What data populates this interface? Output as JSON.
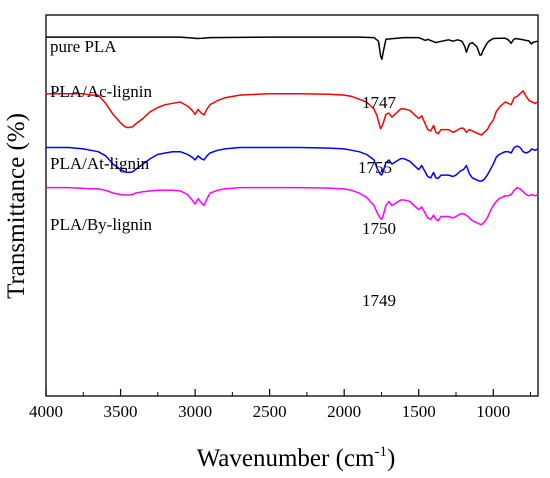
{
  "chart_data": {
    "type": "line",
    "title": "",
    "xlabel": "Wavenumber (cm",
    "xlabel_superscript": "-1",
    "xlabel_suffix": ")",
    "ylabel": "Transmittance (%)",
    "xlim": [
      4000,
      700
    ],
    "x_reversed": true,
    "xticks": [
      4000,
      3500,
      3000,
      2500,
      2000,
      1500,
      1000
    ],
    "xtick_labels": [
      "4000",
      "3500",
      "3000",
      "2500",
      "2000",
      "1500",
      "1000"
    ],
    "y_ticks_shown": false,
    "grid": false,
    "series": [
      {
        "name": "pure PLA",
        "color": "#000000",
        "peak_label": "1747",
        "x": [
          4000,
          3700,
          3400,
          3100,
          3000,
          2995,
          2950,
          2900,
          2500,
          2100,
          1900,
          1800,
          1770,
          1755,
          1747,
          1740,
          1720,
          1600,
          1500,
          1455,
          1440,
          1385,
          1365,
          1300,
          1270,
          1240,
          1210,
          1190,
          1180,
          1160,
          1140,
          1130,
          1110,
          1090,
          1080,
          1070,
          1060,
          1045,
          1030,
          1000,
          960,
          920,
          900,
          880,
          865,
          850,
          800,
          760,
          745,
          730,
          700
        ],
        "y": [
          100.0,
          100.0,
          100.0,
          100.0,
          99.6,
          99.5,
          99.6,
          99.8,
          100.0,
          100.0,
          100.0,
          99.8,
          98.5,
          93.0,
          92.0,
          94.0,
          99.2,
          99.8,
          99.8,
          98.8,
          99.2,
          98.0,
          98.3,
          99.0,
          98.5,
          99.0,
          98.5,
          96.5,
          94.5,
          97.5,
          98.0,
          97.5,
          96.5,
          93.5,
          93.5,
          95.0,
          96.0,
          97.5,
          98.5,
          99.5,
          99.6,
          99.6,
          99.0,
          97.8,
          99.0,
          99.5,
          99.0,
          98.6,
          97.5,
          98.2,
          98.5
        ]
      },
      {
        "name": "PLA/Ac-lignin",
        "color": "#ff0000",
        "peak_label": "1755",
        "x": [
          4000,
          3850,
          3750,
          3700,
          3650,
          3600,
          3550,
          3500,
          3470,
          3450,
          3420,
          3400,
          3350,
          3300,
          3250,
          3200,
          3150,
          3100,
          3050,
          3020,
          3000,
          2980,
          2960,
          2940,
          2920,
          2900,
          2850,
          2800,
          2700,
          2500,
          2300,
          2100,
          2000,
          1950,
          1900,
          1850,
          1800,
          1780,
          1760,
          1755,
          1740,
          1720,
          1700,
          1680,
          1650,
          1620,
          1600,
          1560,
          1520,
          1500,
          1480,
          1460,
          1440,
          1420,
          1400,
          1385,
          1370,
          1350,
          1300,
          1270,
          1250,
          1220,
          1200,
          1180,
          1160,
          1140,
          1120,
          1100,
          1080,
          1060,
          1040,
          1020,
          1000,
          980,
          960,
          940,
          920,
          900,
          880,
          860,
          840,
          820,
          800,
          780,
          760,
          740,
          720,
          700
        ],
        "y": [
          79.5,
          79.5,
          79.5,
          79.0,
          79.0,
          76.0,
          72.0,
          69.0,
          67.5,
          67.2,
          67.5,
          68.5,
          70.5,
          73.0,
          74.5,
          75.5,
          76.0,
          76.5,
          75.0,
          73.5,
          72.0,
          73.8,
          72.5,
          71.8,
          74.0,
          75.5,
          77.0,
          78.0,
          79.0,
          79.5,
          79.5,
          79.3,
          79.0,
          78.5,
          77.5,
          76.5,
          74.0,
          71.5,
          67.5,
          66.8,
          68.5,
          72.0,
          72.5,
          71.0,
          72.5,
          74.0,
          74.0,
          73.5,
          71.5,
          70.5,
          71.5,
          69.0,
          66.5,
          66.0,
          68.0,
          65.5,
          65.0,
          66.5,
          66.5,
          65.5,
          66.0,
          67.0,
          67.0,
          65.5,
          66.5,
          66.0,
          65.5,
          65.0,
          64.5,
          65.5,
          66.5,
          68.5,
          70.0,
          73.0,
          74.5,
          75.5,
          76.5,
          76.0,
          75.5,
          78.0,
          78.5,
          79.5,
          80.5,
          78.5,
          77.0,
          76.5,
          76.0,
          76.5
        ]
      },
      {
        "name": "PLA/At-lignin",
        "color": "#0000ff",
        "peak_label": "1750",
        "x": [
          4000,
          3850,
          3750,
          3700,
          3650,
          3600,
          3550,
          3500,
          3460,
          3440,
          3420,
          3400,
          3350,
          3300,
          3250,
          3200,
          3150,
          3100,
          3050,
          3020,
          3000,
          2980,
          2960,
          2940,
          2920,
          2900,
          2850,
          2800,
          2700,
          2500,
          2300,
          2100,
          2000,
          1950,
          1900,
          1850,
          1800,
          1780,
          1760,
          1750,
          1740,
          1720,
          1700,
          1680,
          1650,
          1620,
          1600,
          1560,
          1520,
          1500,
          1480,
          1460,
          1440,
          1420,
          1400,
          1385,
          1370,
          1350,
          1300,
          1270,
          1250,
          1220,
          1200,
          1180,
          1160,
          1140,
          1120,
          1100,
          1080,
          1060,
          1040,
          1020,
          1000,
          980,
          960,
          940,
          920,
          900,
          880,
          860,
          840,
          820,
          800,
          780,
          760,
          740,
          720,
          700
        ],
        "y": [
          60.0,
          60.0,
          59.5,
          59.0,
          58.5,
          57.0,
          54.0,
          52.0,
          51.0,
          51.0,
          51.2,
          52.0,
          54.0,
          56.0,
          57.5,
          58.0,
          58.5,
          58.5,
          57.5,
          56.5,
          55.5,
          57.0,
          56.0,
          55.5,
          57.0,
          58.0,
          59.0,
          59.5,
          60.0,
          60.0,
          60.0,
          59.8,
          59.5,
          59.0,
          58.5,
          57.5,
          55.5,
          52.5,
          50.5,
          50.0,
          51.0,
          54.5,
          55.5,
          54.0,
          55.0,
          56.0,
          56.0,
          55.0,
          53.0,
          52.0,
          53.5,
          51.5,
          49.5,
          49.0,
          51.0,
          49.0,
          48.8,
          50.0,
          50.0,
          49.5,
          50.0,
          51.5,
          52.0,
          53.5,
          50.5,
          49.0,
          48.5,
          48.0,
          47.8,
          48.5,
          50.0,
          52.0,
          54.0,
          56.5,
          57.5,
          58.0,
          58.5,
          58.5,
          58.0,
          60.0,
          60.5,
          60.0,
          58.5,
          58.0,
          58.5,
          59.5,
          59.0,
          59.5
        ]
      },
      {
        "name": "PLA/By-lignin",
        "color": "#ff00ff",
        "peak_label": "1749",
        "x": [
          4000,
          3850,
          3750,
          3700,
          3650,
          3600,
          3550,
          3500,
          3460,
          3440,
          3420,
          3400,
          3350,
          3300,
          3250,
          3200,
          3150,
          3100,
          3050,
          3020,
          3000,
          2980,
          2960,
          2940,
          2920,
          2900,
          2850,
          2800,
          2700,
          2500,
          2300,
          2100,
          2000,
          1950,
          1900,
          1850,
          1800,
          1780,
          1760,
          1749,
          1740,
          1720,
          1700,
          1680,
          1650,
          1620,
          1600,
          1560,
          1520,
          1500,
          1480,
          1460,
          1440,
          1420,
          1400,
          1385,
          1370,
          1350,
          1300,
          1270,
          1250,
          1220,
          1200,
          1180,
          1160,
          1140,
          1120,
          1100,
          1080,
          1060,
          1040,
          1020,
          1000,
          980,
          960,
          940,
          920,
          900,
          880,
          860,
          840,
          820,
          800,
          780,
          760,
          740,
          720,
          700
        ],
        "y": [
          45.5,
          45.5,
          45.2,
          45.0,
          45.0,
          44.5,
          43.5,
          43.0,
          42.8,
          42.8,
          43.0,
          43.5,
          44.0,
          44.3,
          44.5,
          44.5,
          44.5,
          44.3,
          43.0,
          41.0,
          39.5,
          41.5,
          40.0,
          39.0,
          41.5,
          43.5,
          44.5,
          45.0,
          45.5,
          45.5,
          45.5,
          45.3,
          45.0,
          44.5,
          43.5,
          42.0,
          39.0,
          36.5,
          34.5,
          34.0,
          35.0,
          39.0,
          40.5,
          39.0,
          40.0,
          41.0,
          41.0,
          40.5,
          38.5,
          37.5,
          38.5,
          36.5,
          34.5,
          34.0,
          35.5,
          34.0,
          33.5,
          35.0,
          35.0,
          34.5,
          35.0,
          36.0,
          36.0,
          35.5,
          34.5,
          33.5,
          33.0,
          32.5,
          32.0,
          33.0,
          34.5,
          37.0,
          39.0,
          40.5,
          41.5,
          42.0,
          42.5,
          42.5,
          43.0,
          44.5,
          45.5,
          45.0,
          44.0,
          43.0,
          42.5,
          43.0,
          42.5,
          43.0
        ]
      }
    ]
  }
}
